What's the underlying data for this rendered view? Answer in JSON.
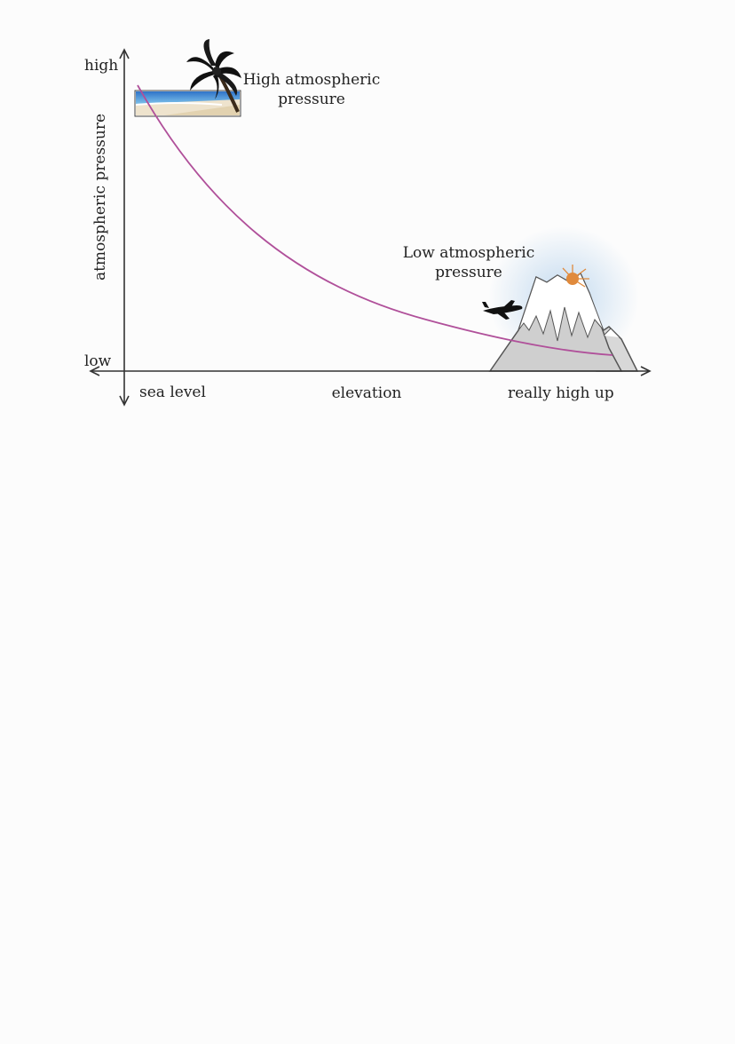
{
  "diagram": {
    "y_axis": {
      "label": "atmospheric pressure",
      "high_label": "high",
      "low_label": "low"
    },
    "x_axis": {
      "left_label": "sea level",
      "center_label": "elevation",
      "right_label": "really high up"
    },
    "annotations": {
      "high_pressure": [
        "High atmospheric",
        "pressure"
      ],
      "low_pressure": [
        "Low atmospheric",
        "pressure"
      ]
    },
    "illustrations": [
      "beach-palm-tree",
      "airplane",
      "snowy-mountain",
      "sun"
    ],
    "curve": {
      "description_type": "decreasing-curve",
      "color": "#b0509a"
    },
    "colors": {
      "axis": "#333333",
      "sea": "#3f8fd6",
      "sand": "#e9dcc2",
      "mountain": "#cfcfcf",
      "sun": "#e08a3c"
    }
  }
}
